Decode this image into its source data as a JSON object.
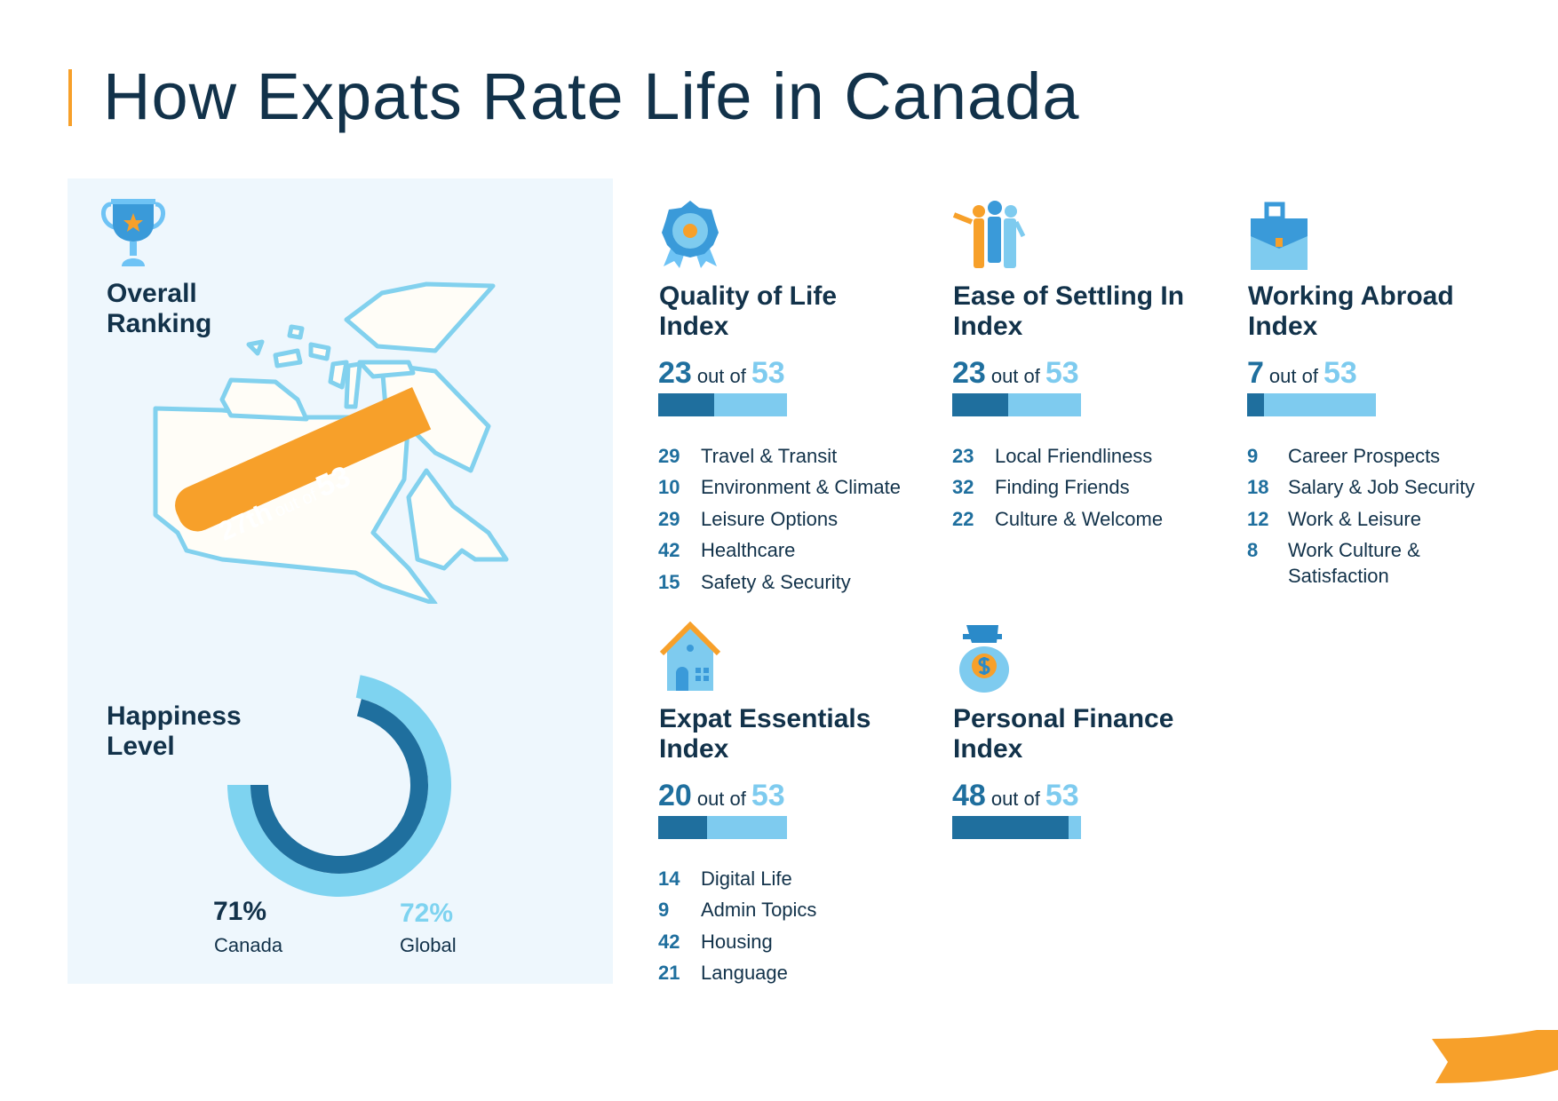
{
  "page": {
    "title": "How Expats Rate Life in Canada"
  },
  "colors": {
    "navy": "#12324a",
    "dark_blue": "#1f6f9e",
    "light_blue": "#7ecbef",
    "orange": "#f7a02a",
    "panel_bg": "#eef7fd"
  },
  "overall": {
    "title": "Overall\nRanking",
    "icon": "trophy-icon",
    "ribbon": {
      "rank": "27th",
      "out_of": "out of",
      "total": "53"
    }
  },
  "happiness": {
    "title": "Happiness\nLevel",
    "canada": {
      "value": 71,
      "label": "71%",
      "name": "Canada"
    },
    "global": {
      "value": 72,
      "label": "72%",
      "name": "Global"
    }
  },
  "indices": [
    {
      "title": "Quality of Life\nIndex",
      "icon": "award-badge-icon",
      "rank": 23,
      "out_of": "out of",
      "total": 53,
      "items": [
        {
          "n": "29",
          "label": "Travel & Transit"
        },
        {
          "n": "10",
          "label": "Environment & Climate"
        },
        {
          "n": "29",
          "label": "Leisure Options"
        },
        {
          "n": "42",
          "label": "Healthcare"
        },
        {
          "n": "15",
          "label": "Safety & Security"
        }
      ]
    },
    {
      "title": "Ease of Settling In\nIndex",
      "icon": "people-group-icon",
      "rank": 23,
      "out_of": "out of",
      "total": 53,
      "items": [
        {
          "n": "23",
          "label": "Local Friendliness"
        },
        {
          "n": "32",
          "label": "Finding Friends"
        },
        {
          "n": "22",
          "label": "Culture & Welcome"
        }
      ]
    },
    {
      "title": "Working Abroad\nIndex",
      "icon": "briefcase-icon",
      "rank": 7,
      "out_of": "out of",
      "total": 53,
      "items": [
        {
          "n": "9",
          "label": "Career Prospects"
        },
        {
          "n": "18",
          "label": "Salary & Job Security"
        },
        {
          "n": "12",
          "label": "Work & Leisure"
        },
        {
          "n": "8",
          "label": "Work Culture & Satisfaction"
        }
      ]
    },
    {
      "title": "Expat Essentials\nIndex",
      "icon": "house-icon",
      "rank": 20,
      "out_of": "out of",
      "total": 53,
      "items": [
        {
          "n": "14",
          "label": "Digital Life"
        },
        {
          "n": "9",
          "label": "Admin Topics"
        },
        {
          "n": "42",
          "label": "Housing"
        },
        {
          "n": "21",
          "label": "Language"
        }
      ]
    },
    {
      "title": "Personal Finance\nIndex",
      "icon": "money-bag-icon",
      "rank": 48,
      "out_of": "out of",
      "total": 53,
      "items": []
    }
  ]
}
